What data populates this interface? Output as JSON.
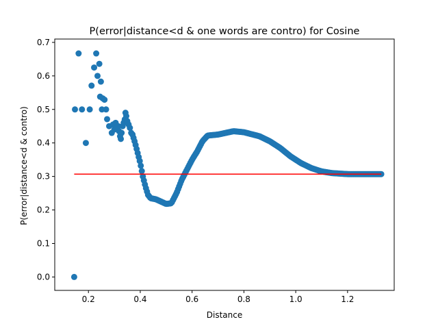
{
  "chart_data": {
    "type": "scatter",
    "title": "P(error|distance<d & one words are contro) for Cosine",
    "xlabel": "Distance",
    "ylabel": "P(error|distance<d & contro)",
    "xlim": [
      0.07,
      1.38
    ],
    "ylim": [
      -0.04,
      0.71
    ],
    "xticks": [
      0.2,
      0.4,
      0.6,
      0.8,
      1.0,
      1.2
    ],
    "xtick_labels": [
      "0.2",
      "0.4",
      "0.6",
      "0.8",
      "1.0",
      "1.2"
    ],
    "yticks": [
      0.0,
      0.1,
      0.2,
      0.3,
      0.4,
      0.5,
      0.6,
      0.7
    ],
    "ytick_labels": [
      "0.0",
      "0.1",
      "0.2",
      "0.3",
      "0.4",
      "0.5",
      "0.6",
      "0.7"
    ],
    "grid": false,
    "colors": {
      "points": "#1f77b4",
      "reference_line": "#ff0000"
    },
    "series": [
      {
        "type": "scatter",
        "points": [
          [
            0.145,
            0.0
          ],
          [
            0.148,
            0.5
          ],
          [
            0.162,
            0.667
          ],
          [
            0.175,
            0.5
          ],
          [
            0.19,
            0.4
          ],
          [
            0.205,
            0.5
          ],
          [
            0.212,
            0.571
          ],
          [
            0.222,
            0.625
          ],
          [
            0.23,
            0.667
          ],
          [
            0.235,
            0.6
          ],
          [
            0.242,
            0.636
          ],
          [
            0.245,
            0.538
          ],
          [
            0.248,
            0.583
          ],
          [
            0.252,
            0.5
          ],
          [
            0.255,
            0.533
          ],
          [
            0.262,
            0.529
          ],
          [
            0.268,
            0.5
          ],
          [
            0.272,
            0.471
          ],
          [
            0.28,
            0.45
          ],
          [
            0.29,
            0.43
          ],
          [
            0.295,
            0.455
          ],
          [
            0.3,
            0.44
          ],
          [
            0.305,
            0.46
          ],
          [
            0.31,
            0.445
          ],
          [
            0.315,
            0.45
          ],
          [
            0.318,
            0.435
          ],
          [
            0.322,
            0.42
          ],
          [
            0.325,
            0.412
          ],
          [
            0.328,
            0.43
          ],
          [
            0.332,
            0.45
          ],
          [
            0.336,
            0.46
          ],
          [
            0.34,
            0.47
          ],
          [
            0.343,
            0.49
          ],
          [
            0.346,
            0.48
          ],
          [
            0.35,
            0.465
          ],
          [
            0.355,
            0.455
          ],
          [
            0.36,
            0.445
          ],
          [
            0.365,
            0.43
          ],
          [
            0.37,
            0.425
          ]
        ]
      },
      {
        "type": "scatter-curve",
        "x_start": 0.37,
        "x_end": 1.33,
        "step": 0.004,
        "anchors": [
          [
            0.37,
            0.425
          ],
          [
            0.38,
            0.4
          ],
          [
            0.39,
            0.37
          ],
          [
            0.4,
            0.34
          ],
          [
            0.41,
            0.3
          ],
          [
            0.42,
            0.27
          ],
          [
            0.43,
            0.245
          ],
          [
            0.44,
            0.235
          ],
          [
            0.46,
            0.232
          ],
          [
            0.48,
            0.225
          ],
          [
            0.5,
            0.218
          ],
          [
            0.52,
            0.22
          ],
          [
            0.54,
            0.25
          ],
          [
            0.56,
            0.29
          ],
          [
            0.58,
            0.32
          ],
          [
            0.6,
            0.35
          ],
          [
            0.62,
            0.375
          ],
          [
            0.64,
            0.405
          ],
          [
            0.66,
            0.422
          ],
          [
            0.7,
            0.425
          ],
          [
            0.76,
            0.435
          ],
          [
            0.8,
            0.432
          ],
          [
            0.86,
            0.42
          ],
          [
            0.9,
            0.405
          ],
          [
            0.94,
            0.385
          ],
          [
            0.98,
            0.36
          ],
          [
            1.02,
            0.34
          ],
          [
            1.06,
            0.325
          ],
          [
            1.1,
            0.315
          ],
          [
            1.14,
            0.31
          ],
          [
            1.2,
            0.307
          ],
          [
            1.33,
            0.307
          ]
        ]
      }
    ],
    "reference_line": {
      "y": 0.307,
      "x": [
        0.145,
        1.33
      ]
    }
  }
}
